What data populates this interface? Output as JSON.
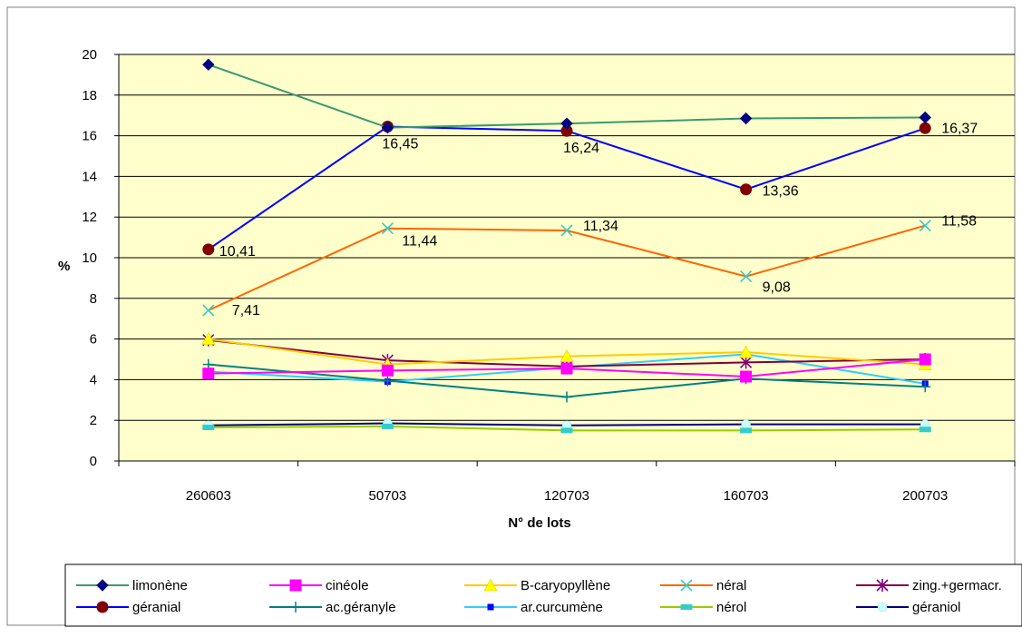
{
  "chart_data": {
    "type": "line",
    "title": "",
    "xlabel": "N° de lots",
    "ylabel": "%",
    "ylim": [
      0,
      20
    ],
    "yticks": [
      0,
      2,
      4,
      6,
      8,
      10,
      12,
      14,
      16,
      18,
      20
    ],
    "categories": [
      "260603",
      "50703",
      "120703",
      "160703",
      "200703"
    ],
    "grid": true,
    "legend_position": "bottom",
    "series": [
      {
        "name": "limonène",
        "color": "#3a9a6e",
        "marker": "diamond",
        "marker_color": "#000080",
        "values": [
          19.5,
          16.4,
          16.6,
          16.85,
          16.9
        ]
      },
      {
        "name": "cinéole",
        "color": "#ff00ff",
        "marker": "square",
        "marker_color": "#ff00ff",
        "values": [
          4.3,
          4.45,
          4.55,
          4.15,
          5.0
        ]
      },
      {
        "name": "B-caryopyllène",
        "color": "#ffcc00",
        "marker": "triangle",
        "marker_color": "#ffff00",
        "values": [
          6.0,
          4.75,
          5.15,
          5.35,
          4.75
        ]
      },
      {
        "name": "néral",
        "color": "#ff6600",
        "marker": "x",
        "marker_color": "#33cccc",
        "values": [
          7.41,
          11.44,
          11.34,
          9.08,
          11.58
        ],
        "labels": [
          "7,41",
          "11,44",
          "11,34",
          "9,08",
          "11,58"
        ]
      },
      {
        "name": "zing.+germacr.",
        "color": "#800040",
        "marker": "star",
        "marker_color": "#800080",
        "values": [
          5.95,
          4.95,
          4.65,
          4.85,
          5.0
        ]
      },
      {
        "name": "géranial",
        "color": "#0000ff",
        "marker": "circle",
        "marker_color": "#800000",
        "values": [
          10.41,
          16.45,
          16.24,
          13.36,
          16.37
        ],
        "labels": [
          "10,41",
          "16,45",
          "16,24",
          "13,36",
          "16,37"
        ]
      },
      {
        "name": "ac.géranyle",
        "color": "#008080",
        "marker": "plus",
        "marker_color": "#008080",
        "values": [
          4.75,
          3.95,
          3.15,
          4.05,
          3.65
        ]
      },
      {
        "name": "ar.curcumène",
        "color": "#33ccff",
        "marker": "smallsquare",
        "marker_color": "#0000ff",
        "values": [
          4.4,
          3.9,
          4.6,
          5.25,
          3.8
        ]
      },
      {
        "name": "nérol",
        "color": "#99cc00",
        "marker": "dash",
        "marker_color": "#33cccc",
        "values": [
          1.65,
          1.7,
          1.5,
          1.5,
          1.55
        ]
      },
      {
        "name": "géraniol",
        "color": "#000080",
        "marker": "dot",
        "marker_color": "#ccffff",
        "values": [
          1.75,
          1.85,
          1.75,
          1.8,
          1.8
        ]
      }
    ]
  }
}
